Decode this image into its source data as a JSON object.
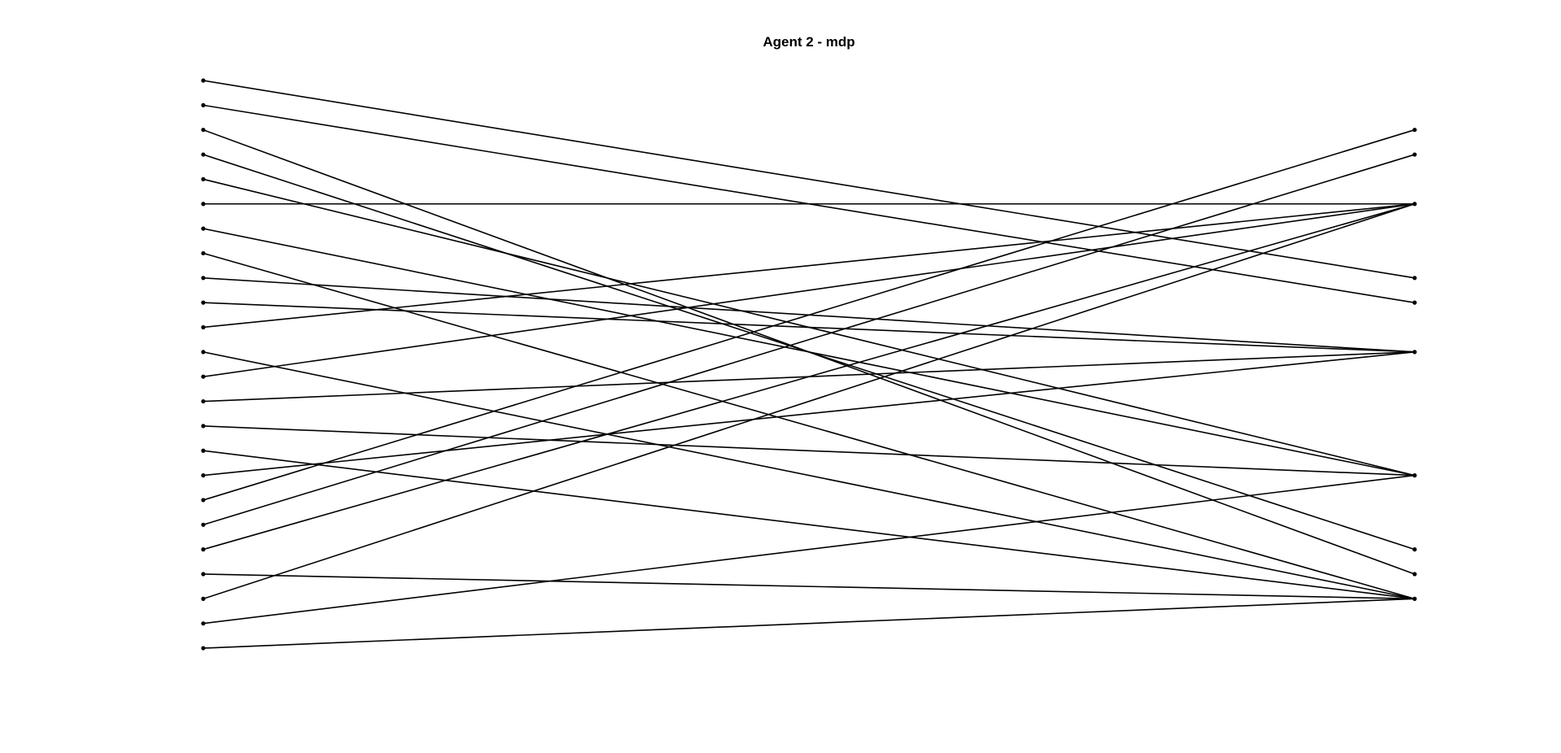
{
  "title": "Agent 2 - mdp",
  "colors": {
    "line": "#000000",
    "node": "#000000",
    "background": "#ffffff"
  },
  "left_node_count": 24,
  "right_node_slots": 22,
  "edges": [
    [
      0,
      8
    ],
    [
      1,
      9
    ],
    [
      2,
      20
    ],
    [
      3,
      19
    ],
    [
      4,
      16
    ],
    [
      5,
      5
    ],
    [
      6,
      16
    ],
    [
      7,
      21
    ],
    [
      8,
      11
    ],
    [
      9,
      11
    ],
    [
      10,
      5
    ],
    [
      11,
      21
    ],
    [
      12,
      5
    ],
    [
      13,
      11
    ],
    [
      14,
      16
    ],
    [
      15,
      21
    ],
    [
      16,
      11
    ],
    [
      17,
      2
    ],
    [
      18,
      3
    ],
    [
      19,
      5
    ],
    [
      20,
      21
    ],
    [
      21,
      5
    ],
    [
      22,
      16
    ],
    [
      23,
      21
    ]
  ]
}
